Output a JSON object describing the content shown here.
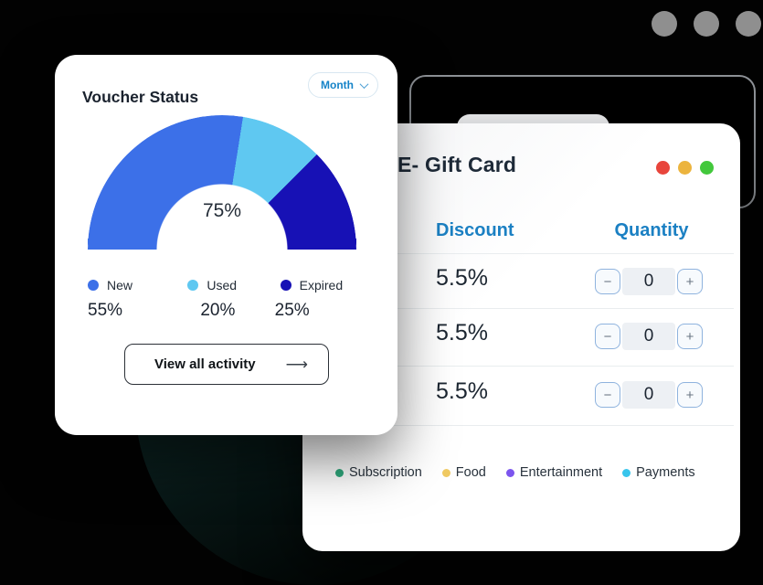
{
  "voucher_card": {
    "title": "Voucher Status",
    "period_selector": {
      "value": "Month"
    },
    "chart_data": {
      "type": "gauge",
      "center_label": "75%",
      "segments": [
        {
          "label": "New",
          "value": 55,
          "color": "#3C70E8"
        },
        {
          "label": "Used",
          "value": 20,
          "color": "#5FC8F1"
        },
        {
          "label": "Expired",
          "value": 25,
          "color": "#1711B5"
        }
      ]
    },
    "legend": [
      {
        "label": "New",
        "pct": "55%",
        "color": "#3C70E8"
      },
      {
        "label": "Used",
        "pct": "20%",
        "color": "#5FC8F1"
      },
      {
        "label": "Expired",
        "pct": "25%",
        "color": "#1711B5"
      }
    ],
    "action_button": {
      "label": "View all activity",
      "arrow": "⟶"
    }
  },
  "gift_card": {
    "title": "E- Gift Card",
    "traffic_lights": {
      "red": "#E8453C",
      "yellow": "#ECB43E",
      "green": "#43C83C"
    },
    "table": {
      "columns": {
        "discount": "Discount",
        "quantity": "Quantity"
      },
      "rows": [
        {
          "discount": "5.5%",
          "quantity": "0"
        },
        {
          "discount": "5.5%",
          "quantity": "0"
        },
        {
          "discount": "5.5%",
          "quantity": "0"
        }
      ]
    },
    "stepper": {
      "minus": "−",
      "plus": "+"
    },
    "legend": [
      {
        "label": "Subscription",
        "color": "#2FA97C"
      },
      {
        "label": "Food",
        "color": "#F0CA63"
      },
      {
        "label": "Entertainment",
        "color": "#7C55EE"
      },
      {
        "label": "Payments",
        "color": "#38C5EC"
      }
    ]
  }
}
